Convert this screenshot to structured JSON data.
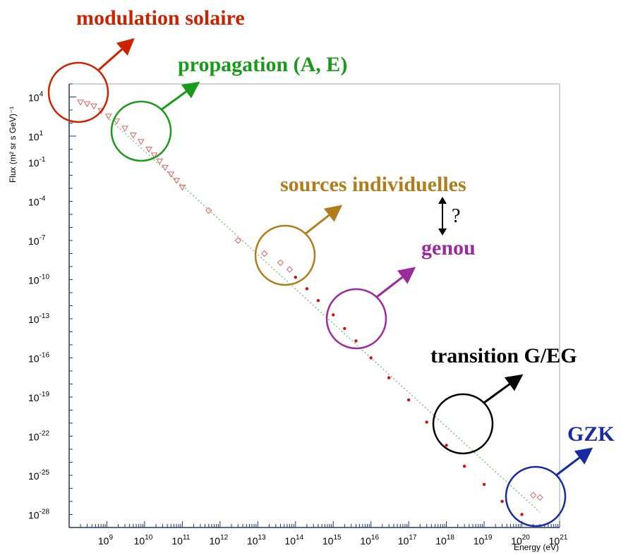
{
  "chart_data": {
    "type": "scatter",
    "xscale": "log",
    "yscale": "log",
    "xlim": [
      100000000.0,
      1e+21
    ],
    "ylim": [
      1e-29,
      100000.0
    ],
    "xlabel": "Energy (eV)",
    "ylabel": "Flux (m² sr s GeV)⁻¹",
    "x_tick_exponents": [
      "9",
      "10",
      "11",
      "12",
      "13",
      "14",
      "15",
      "16",
      "17",
      "18",
      "19",
      "20",
      "21"
    ],
    "y_tick_exponents": [
      "4",
      "1",
      "-1",
      "-4",
      "-7",
      "-10",
      "-13",
      "-16",
      "-19",
      "-22",
      "-25",
      "-28"
    ],
    "frame": "box",
    "fit_line": "dotted green power law",
    "series": [
      {
        "marker": "open triangle",
        "color": "#e06060",
        "points": [
          [
            200000000.0,
            4000
          ],
          [
            300000000.0,
            3000
          ],
          [
            450000000.0,
            2000
          ],
          [
            700000000.0,
            900
          ],
          [
            1100000000.0,
            330
          ],
          [
            1800000000.0,
            140
          ],
          [
            3000000000.0,
            40
          ],
          [
            5000000000.0,
            12
          ],
          [
            8000000000.0,
            3.8
          ],
          [
            13000000000.0,
            1.0
          ],
          [
            18000000000.0,
            0.35
          ],
          [
            25000000000.0,
            0.12
          ],
          [
            35000000000.0,
            0.04
          ],
          [
            50000000000.0,
            0.012
          ],
          [
            70000000000.0,
            0.004
          ],
          [
            100000000000.0,
            0.0012
          ]
        ]
      },
      {
        "marker": "open diamond",
        "color": "#e06060",
        "points": [
          [
            500000000000.0,
            2e-05
          ],
          [
            3000000000000.0,
            1e-07
          ],
          [
            15000000000000.0,
            1e-08
          ],
          [
            40000000000000.0,
            2e-09
          ],
          [
            70000000000000.0,
            6e-10
          ],
          [
            2e+20,
            3e-27
          ],
          [
            3e+20,
            2e-27
          ]
        ]
      },
      {
        "marker": "filled dot",
        "color": "#d01010",
        "points": [
          [
            100000000000000.0,
            1.5e-10
          ],
          [
            200000000000000.0,
            2e-11
          ],
          [
            400000000000000.0,
            2.5e-12
          ],
          [
            1000000000000000.0,
            2e-13
          ],
          [
            2000000000000000.0,
            1.8e-14
          ],
          [
            4000000000000000.0,
            2e-15
          ],
          [
            1e+16,
            1e-16
          ],
          [
            3e+16,
            3e-18
          ],
          [
            1e+17,
            6e-20
          ],
          [
            3e+17,
            1.2e-21
          ],
          [
            1e+18,
            2e-23
          ],
          [
            3e+18,
            5e-25
          ],
          [
            1e+19,
            2e-26
          ],
          [
            3e+19,
            1e-27
          ],
          [
            1e+20,
            1e-28
          ]
        ]
      }
    ]
  },
  "annotations": [
    {
      "text": "modulation solaire",
      "color": "#cc2200"
    },
    {
      "text": "propagation (A, E)",
      "color": "#1a9a1a"
    },
    {
      "text": "sources individuelles",
      "color": "#b07d1a"
    },
    {
      "text": "?",
      "color": "#000000"
    },
    {
      "text": "genou",
      "color": "#9b2a9b"
    },
    {
      "text": "transition G/EG",
      "color": "#000000"
    },
    {
      "text": "GZK",
      "color": "#1a2aa0"
    }
  ]
}
